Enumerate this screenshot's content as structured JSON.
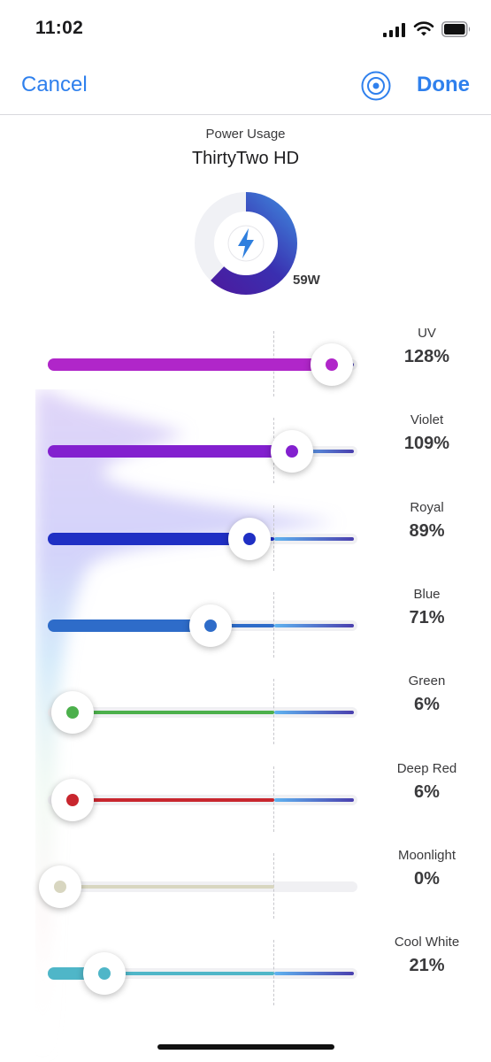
{
  "status_bar": {
    "time": "11:02",
    "icons": [
      "signal-icon",
      "wifi-icon",
      "battery-icon"
    ]
  },
  "nav": {
    "cancel_label": "Cancel",
    "done_label": "Done",
    "broadcast_icon": "broadcast-icon"
  },
  "power": {
    "label": "Power Usage",
    "device": "ThirtyTwo HD",
    "watts": "59W",
    "usage_fraction": 0.62,
    "icon": "lightning-bolt-icon"
  },
  "colors": {
    "accent": "#2f80ed",
    "reference_tail_start": "#5fb3f0",
    "reference_tail_end": "#4a3fae"
  },
  "channels": [
    {
      "name": "UV",
      "percent": "128%",
      "value": 128,
      "color": "#b026c9"
    },
    {
      "name": "Violet",
      "percent": "109%",
      "value": 109,
      "color": "#8320cf"
    },
    {
      "name": "Royal",
      "percent": "89%",
      "value": 89,
      "color": "#1f2fc4"
    },
    {
      "name": "Blue",
      "percent": "71%",
      "value": 71,
      "color": "#2e6cc9"
    },
    {
      "name": "Green",
      "percent": "6%",
      "value": 6,
      "color": "#4cb04c"
    },
    {
      "name": "Deep Red",
      "percent": "6%",
      "value": 6,
      "color": "#c8262e"
    },
    {
      "name": "Moonlight",
      "percent": "0%",
      "value": 0,
      "color": "#d8d6c0"
    },
    {
      "name": "Cool White",
      "percent": "21%",
      "value": 21,
      "color": "#4fb6c8"
    }
  ]
}
